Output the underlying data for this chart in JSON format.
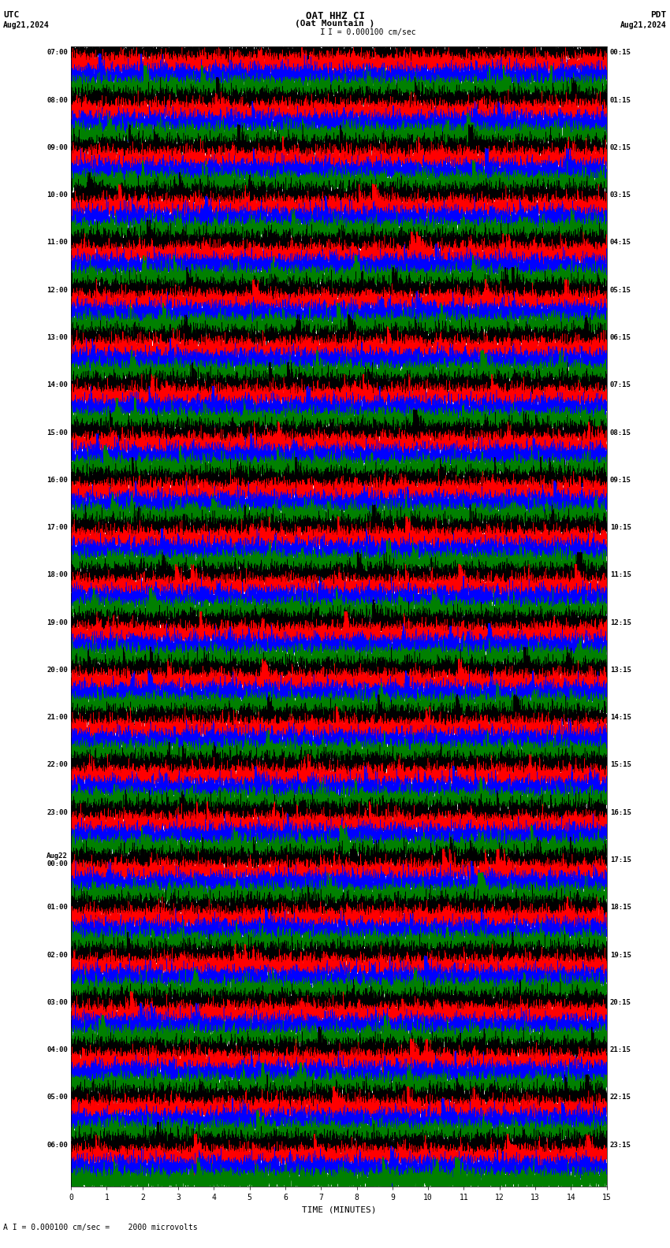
{
  "title_line1": "OAT HHZ CI",
  "title_line2": "(Oat Mountain )",
  "scale_label": "I = 0.000100 cm/sec",
  "bottom_label": "A I = 0.000100 cm/sec =    2000 microvolts",
  "utc_label": "UTC",
  "pdt_label": "PDT",
  "date_left": "Aug21,2024",
  "date_right": "Aug21,2024",
  "xlabel": "TIME (MINUTES)",
  "left_times": [
    "07:00",
    "08:00",
    "09:00",
    "10:00",
    "11:00",
    "12:00",
    "13:00",
    "14:00",
    "15:00",
    "16:00",
    "17:00",
    "18:00",
    "19:00",
    "20:00",
    "21:00",
    "22:00",
    "23:00",
    "Aug22\n00:00",
    "01:00",
    "02:00",
    "03:00",
    "04:00",
    "05:00",
    "06:00"
  ],
  "right_times": [
    "00:15",
    "01:15",
    "02:15",
    "03:15",
    "04:15",
    "05:15",
    "06:15",
    "07:15",
    "08:15",
    "09:15",
    "10:15",
    "11:15",
    "12:15",
    "13:15",
    "14:15",
    "15:15",
    "16:15",
    "17:15",
    "18:15",
    "19:15",
    "20:15",
    "21:15",
    "22:15",
    "23:15"
  ],
  "colors": [
    "black",
    "red",
    "blue",
    "green"
  ],
  "bg_color": "white",
  "num_rows": 24,
  "traces_per_row": 4,
  "xmin": 0,
  "xmax": 15,
  "xticks": [
    0,
    1,
    2,
    3,
    4,
    5,
    6,
    7,
    8,
    9,
    10,
    11,
    12,
    13,
    14,
    15
  ],
  "seed": 42
}
